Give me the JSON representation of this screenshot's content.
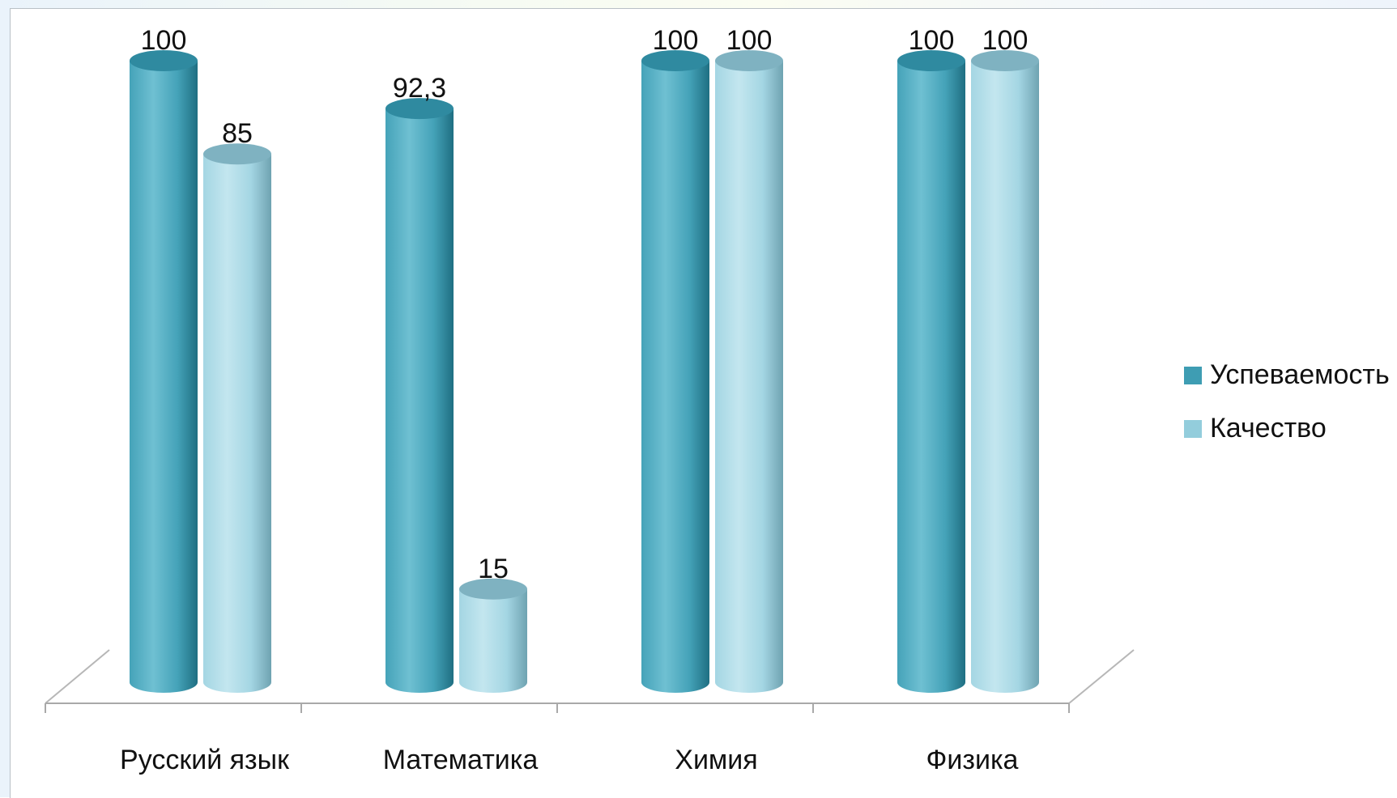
{
  "chart_data": {
    "type": "bar",
    "subtype": "3d-cylinder-clustered",
    "categories": [
      "Русский язык",
      "Математика",
      "Химия",
      "Физика"
    ],
    "series": [
      {
        "name": "Успеваемость",
        "values": [
          100,
          92.3,
          100,
          100
        ],
        "labels": [
          "100",
          "92,3",
          "100",
          "100"
        ],
        "color": "#3e9db3"
      },
      {
        "name": "Качество",
        "values": [
          85,
          15,
          100,
          100
        ],
        "labels": [
          "85",
          "15",
          "100",
          "100"
        ],
        "color": "#93cddc"
      }
    ],
    "ylim": [
      0,
      100
    ],
    "grid": false,
    "legend_position": "right",
    "title": "",
    "xlabel": "",
    "ylabel": ""
  }
}
